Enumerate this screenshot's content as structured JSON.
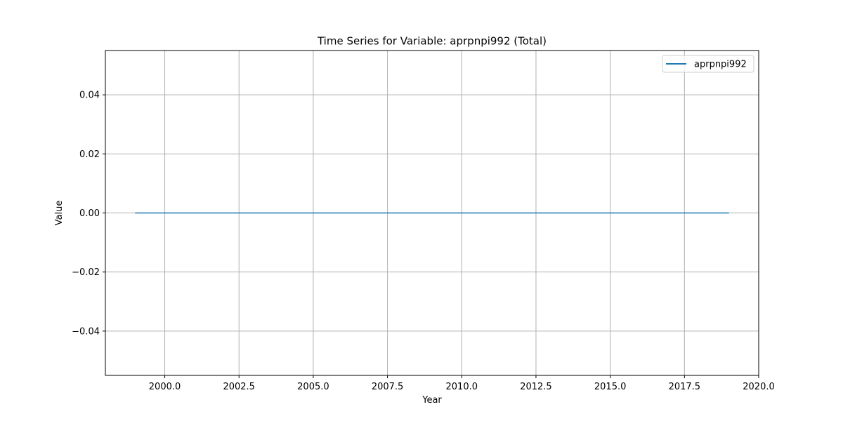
{
  "chart_data": {
    "type": "line",
    "title": "Time Series for Variable: aprpnpi992 (Total)",
    "xlabel": "Year",
    "ylabel": "Value",
    "xlim": [
      1998.0,
      2020.0
    ],
    "ylim": [
      -0.055,
      0.055
    ],
    "x_ticks": [
      2000.0,
      2002.5,
      2005.0,
      2007.5,
      2010.0,
      2012.5,
      2015.0,
      2017.5,
      2020.0
    ],
    "x_tick_labels": [
      "2000.0",
      "2002.5",
      "2005.0",
      "2007.5",
      "2010.0",
      "2012.5",
      "2015.0",
      "2017.5",
      "2020.0"
    ],
    "y_ticks": [
      -0.04,
      -0.02,
      0.0,
      0.02,
      0.04
    ],
    "y_tick_labels": [
      "−0.04",
      "−0.02",
      "0.00",
      "0.02",
      "0.04"
    ],
    "grid": true,
    "legend_position": "top-right",
    "series": [
      {
        "name": "aprpnpi992",
        "color": "#1f77b4",
        "x": [
          1999,
          2000,
          2001,
          2002,
          2003,
          2004,
          2005,
          2006,
          2007,
          2008,
          2009,
          2010,
          2011,
          2012,
          2013,
          2014,
          2015,
          2016,
          2017,
          2018,
          2019
        ],
        "y": [
          0,
          0,
          0,
          0,
          0,
          0,
          0,
          0,
          0,
          0,
          0,
          0,
          0,
          0,
          0,
          0,
          0,
          0,
          0,
          0,
          0
        ]
      }
    ]
  }
}
